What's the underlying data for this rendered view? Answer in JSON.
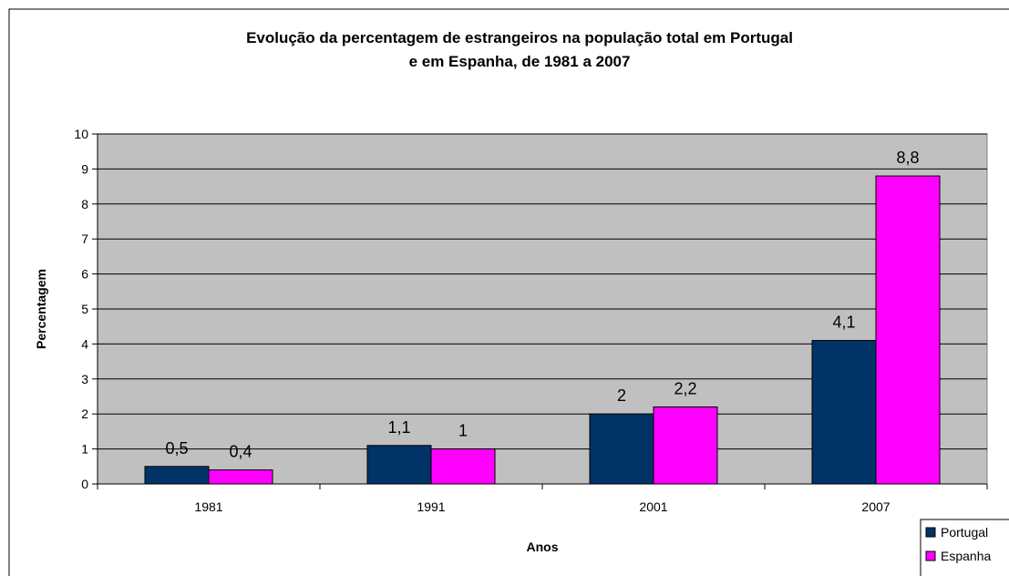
{
  "chart_data": {
    "type": "bar",
    "title": [
      "Evolução da percentagem de estrangeiros na população total em Portugal",
      "e em Espanha, de 1981 a 2007"
    ],
    "x_label": "Anos",
    "y_label": "Percentagem",
    "categories": [
      "1981",
      "1991",
      "2001",
      "2007"
    ],
    "series": [
      {
        "name": "Portugal",
        "color": "#003366",
        "values": [
          0.5,
          1.1,
          2,
          4.1
        ],
        "value_labels": [
          "0,5",
          "1,1",
          "2",
          "4,1"
        ]
      },
      {
        "name": "Espanha",
        "color": "#ff00ff",
        "values": [
          0.4,
          1,
          2.2,
          8.8
        ],
        "value_labels": [
          "0,4",
          "1",
          "2,2",
          "8,8"
        ]
      }
    ],
    "ylim": [
      0,
      10
    ],
    "yticks": [
      0,
      1,
      2,
      3,
      4,
      5,
      6,
      7,
      8,
      9,
      10
    ],
    "grid": true,
    "plot_background": "#c0c0c0",
    "legend": "bottom-right"
  }
}
